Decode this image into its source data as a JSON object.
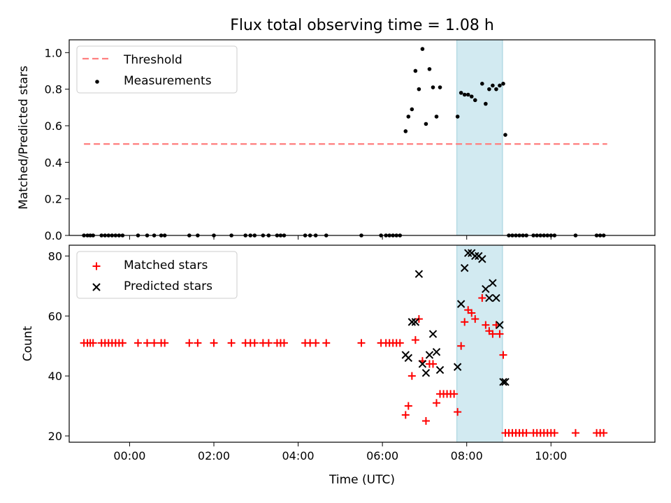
{
  "figure": {
    "title": "Flux total observing time = 1.08 h",
    "xlabel": "Time (UTC)",
    "xticks": [
      "00:00",
      "02:00",
      "04:00",
      "06:00",
      "08:00",
      "10:00"
    ]
  },
  "chart_data": [
    {
      "type": "scatter",
      "title": "Flux total observing time = 1.08 h",
      "xlabel": "",
      "ylabel": "Matched/Predicted stars",
      "xlim": [
        "-01:26",
        "12:28"
      ],
      "ylim": [
        0,
        1.07
      ],
      "yticks": [
        0.0,
        0.2,
        0.4,
        0.6,
        0.8,
        1.0
      ],
      "legend_placement": "upper left",
      "observing_window": {
        "start": "07:46",
        "end": "08:51",
        "color": "#add8e6"
      },
      "series": [
        {
          "name": "Threshold",
          "kind": "dashed-line",
          "color": "#ff7f7f",
          "x": [
            "-01:05",
            "11:20"
          ],
          "y": [
            0.5,
            0.5
          ]
        },
        {
          "name": "Measurements",
          "kind": "points",
          "color": "#000000",
          "x": [
            "-01:05",
            "-01:00",
            "-00:56",
            "-00:52",
            "-00:40",
            "-00:35",
            "-00:30",
            "-00:25",
            "-00:20",
            "-00:15",
            "-00:10",
            "00:12",
            "00:25",
            "00:35",
            "00:45",
            "00:50",
            "01:25",
            "01:37",
            "02:00",
            "02:25",
            "02:45",
            "02:52",
            "02:58",
            "03:10",
            "03:18",
            "03:30",
            "03:35",
            "03:40",
            "04:10",
            "04:17",
            "04:25",
            "04:40",
            "05:30",
            "05:58",
            "06:05",
            "06:10",
            "06:15",
            "06:20",
            "06:25",
            "06:33",
            "06:37",
            "06:42",
            "06:47",
            "06:52",
            "06:57",
            "07:02",
            "07:07",
            "07:12",
            "07:17",
            "07:22",
            "07:47",
            "07:52",
            "07:57",
            "08:02",
            "08:07",
            "08:12",
            "08:22",
            "08:27",
            "08:32",
            "08:37",
            "08:42",
            "08:47",
            "08:52",
            "08:55",
            "09:00",
            "09:05",
            "09:10",
            "09:15",
            "09:20",
            "09:25",
            "09:35",
            "09:40",
            "09:45",
            "09:50",
            "09:55",
            "10:00",
            "10:05",
            "10:35",
            "11:05",
            "11:10",
            "11:15"
          ],
          "y": [
            0,
            0,
            0,
            0,
            0,
            0,
            0,
            0,
            0,
            0,
            0,
            0,
            0,
            0,
            0,
            0,
            0,
            0,
            0,
            0,
            0,
            0,
            0,
            0,
            0,
            0,
            0,
            0,
            0,
            0,
            0,
            0,
            0,
            0,
            0,
            0,
            0,
            0,
            0,
            0.57,
            0.65,
            0.69,
            0.9,
            0.8,
            1.02,
            0.61,
            0.91,
            0.81,
            0.65,
            0.81,
            0.65,
            0.78,
            0.77,
            0.77,
            0.76,
            0.74,
            0.83,
            0.72,
            0.8,
            0.82,
            0.8,
            0.82,
            0.83,
            0.55,
            0,
            0,
            0,
            0,
            0,
            0,
            0,
            0,
            0,
            0,
            0,
            0,
            0,
            0,
            0,
            0,
            0
          ]
        }
      ]
    },
    {
      "type": "scatter",
      "title": "",
      "xlabel": "Time (UTC)",
      "ylabel": "Count",
      "xlim": [
        "-01:26",
        "12:28"
      ],
      "ylim": [
        17.9,
        83.6
      ],
      "yticks": [
        20,
        40,
        60,
        80
      ],
      "legend_placement": "upper left",
      "observing_window": {
        "start": "07:46",
        "end": "08:51",
        "color": "#add8e6"
      },
      "series": [
        {
          "name": "Matched stars",
          "marker": "plus",
          "color": "#ff0000",
          "x": [
            "-01:05",
            "-01:00",
            "-00:56",
            "-00:52",
            "-00:40",
            "-00:35",
            "-00:30",
            "-00:25",
            "-00:20",
            "-00:15",
            "-00:10",
            "00:12",
            "00:25",
            "00:35",
            "00:45",
            "00:50",
            "01:25",
            "01:37",
            "02:00",
            "02:25",
            "02:45",
            "02:52",
            "02:58",
            "03:10",
            "03:18",
            "03:30",
            "03:35",
            "03:40",
            "04:10",
            "04:17",
            "04:25",
            "04:40",
            "05:30",
            "05:58",
            "06:05",
            "06:10",
            "06:15",
            "06:20",
            "06:25",
            "06:33",
            "06:37",
            "06:42",
            "06:47",
            "06:52",
            "06:57",
            "07:02",
            "07:07",
            "07:12",
            "07:17",
            "07:22",
            "07:27",
            "07:32",
            "07:37",
            "07:42",
            "07:47",
            "07:52",
            "07:57",
            "08:02",
            "08:07",
            "08:12",
            "08:22",
            "08:27",
            "08:32",
            "08:37",
            "08:42",
            "08:47",
            "08:52",
            "08:55",
            "09:00",
            "09:05",
            "09:10",
            "09:15",
            "09:20",
            "09:25",
            "09:35",
            "09:40",
            "09:45",
            "09:50",
            "09:55",
            "10:00",
            "10:05",
            "10:35",
            "11:05",
            "11:10",
            "11:15"
          ],
          "y": [
            51,
            51,
            51,
            51,
            51,
            51,
            51,
            51,
            51,
            51,
            51,
            51,
            51,
            51,
            51,
            51,
            51,
            51,
            51,
            51,
            51,
            51,
            51,
            51,
            51,
            51,
            51,
            51,
            51,
            51,
            51,
            51,
            51,
            51,
            51,
            51,
            51,
            51,
            51,
            27,
            30,
            40,
            52,
            59,
            45,
            25,
            44,
            44,
            31,
            34,
            34,
            34,
            34,
            34,
            28,
            50,
            58,
            62,
            61,
            59,
            66,
            57,
            55,
            54,
            57,
            54,
            47,
            21,
            21,
            21,
            21,
            21,
            21,
            21,
            21,
            21,
            21,
            21,
            21,
            21,
            21,
            21,
            21,
            21,
            21
          ]
        },
        {
          "name": "Predicted stars",
          "marker": "x",
          "color": "#000000",
          "x": [
            "06:33",
            "06:37",
            "06:42",
            "06:47",
            "06:52",
            "06:57",
            "07:02",
            "07:07",
            "07:12",
            "07:17",
            "07:22",
            "07:47",
            "07:52",
            "07:57",
            "08:02",
            "08:07",
            "08:12",
            "08:17",
            "08:22",
            "08:27",
            "08:32",
            "08:37",
            "08:42",
            "08:47",
            "08:52",
            "08:55"
          ],
          "y": [
            47,
            46,
            58,
            58,
            74,
            44,
            41,
            47,
            54,
            48,
            42,
            43,
            64,
            76,
            81,
            81,
            80,
            80,
            79,
            69,
            66,
            71,
            66,
            57,
            38,
            38
          ]
        }
      ]
    }
  ]
}
